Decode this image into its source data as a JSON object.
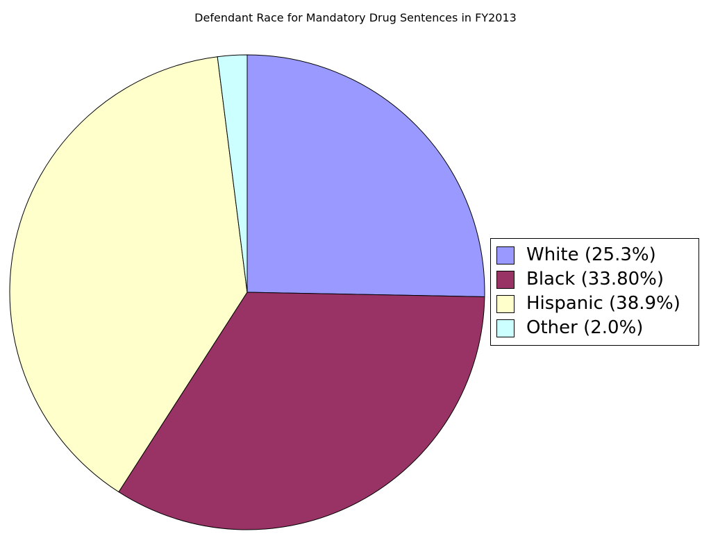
{
  "chart_data": {
    "type": "pie",
    "title": "Defendant Race for Mandatory Drug Sentences in FY2013",
    "categories": [
      "White",
      "Black",
      "Hispanic",
      "Other"
    ],
    "values": [
      25.3,
      33.8,
      38.9,
      2.0
    ],
    "colors": [
      "#9999ff",
      "#993366",
      "#ffffcc",
      "#ccffff"
    ],
    "legend": {
      "placement": "right",
      "labels": [
        "White (25.3%)",
        "Black (33.80%)",
        "Hispanic (38.9%)",
        "Other (2.0%)"
      ]
    },
    "start_angle": "12 o'clock",
    "direction": "clockwise"
  }
}
